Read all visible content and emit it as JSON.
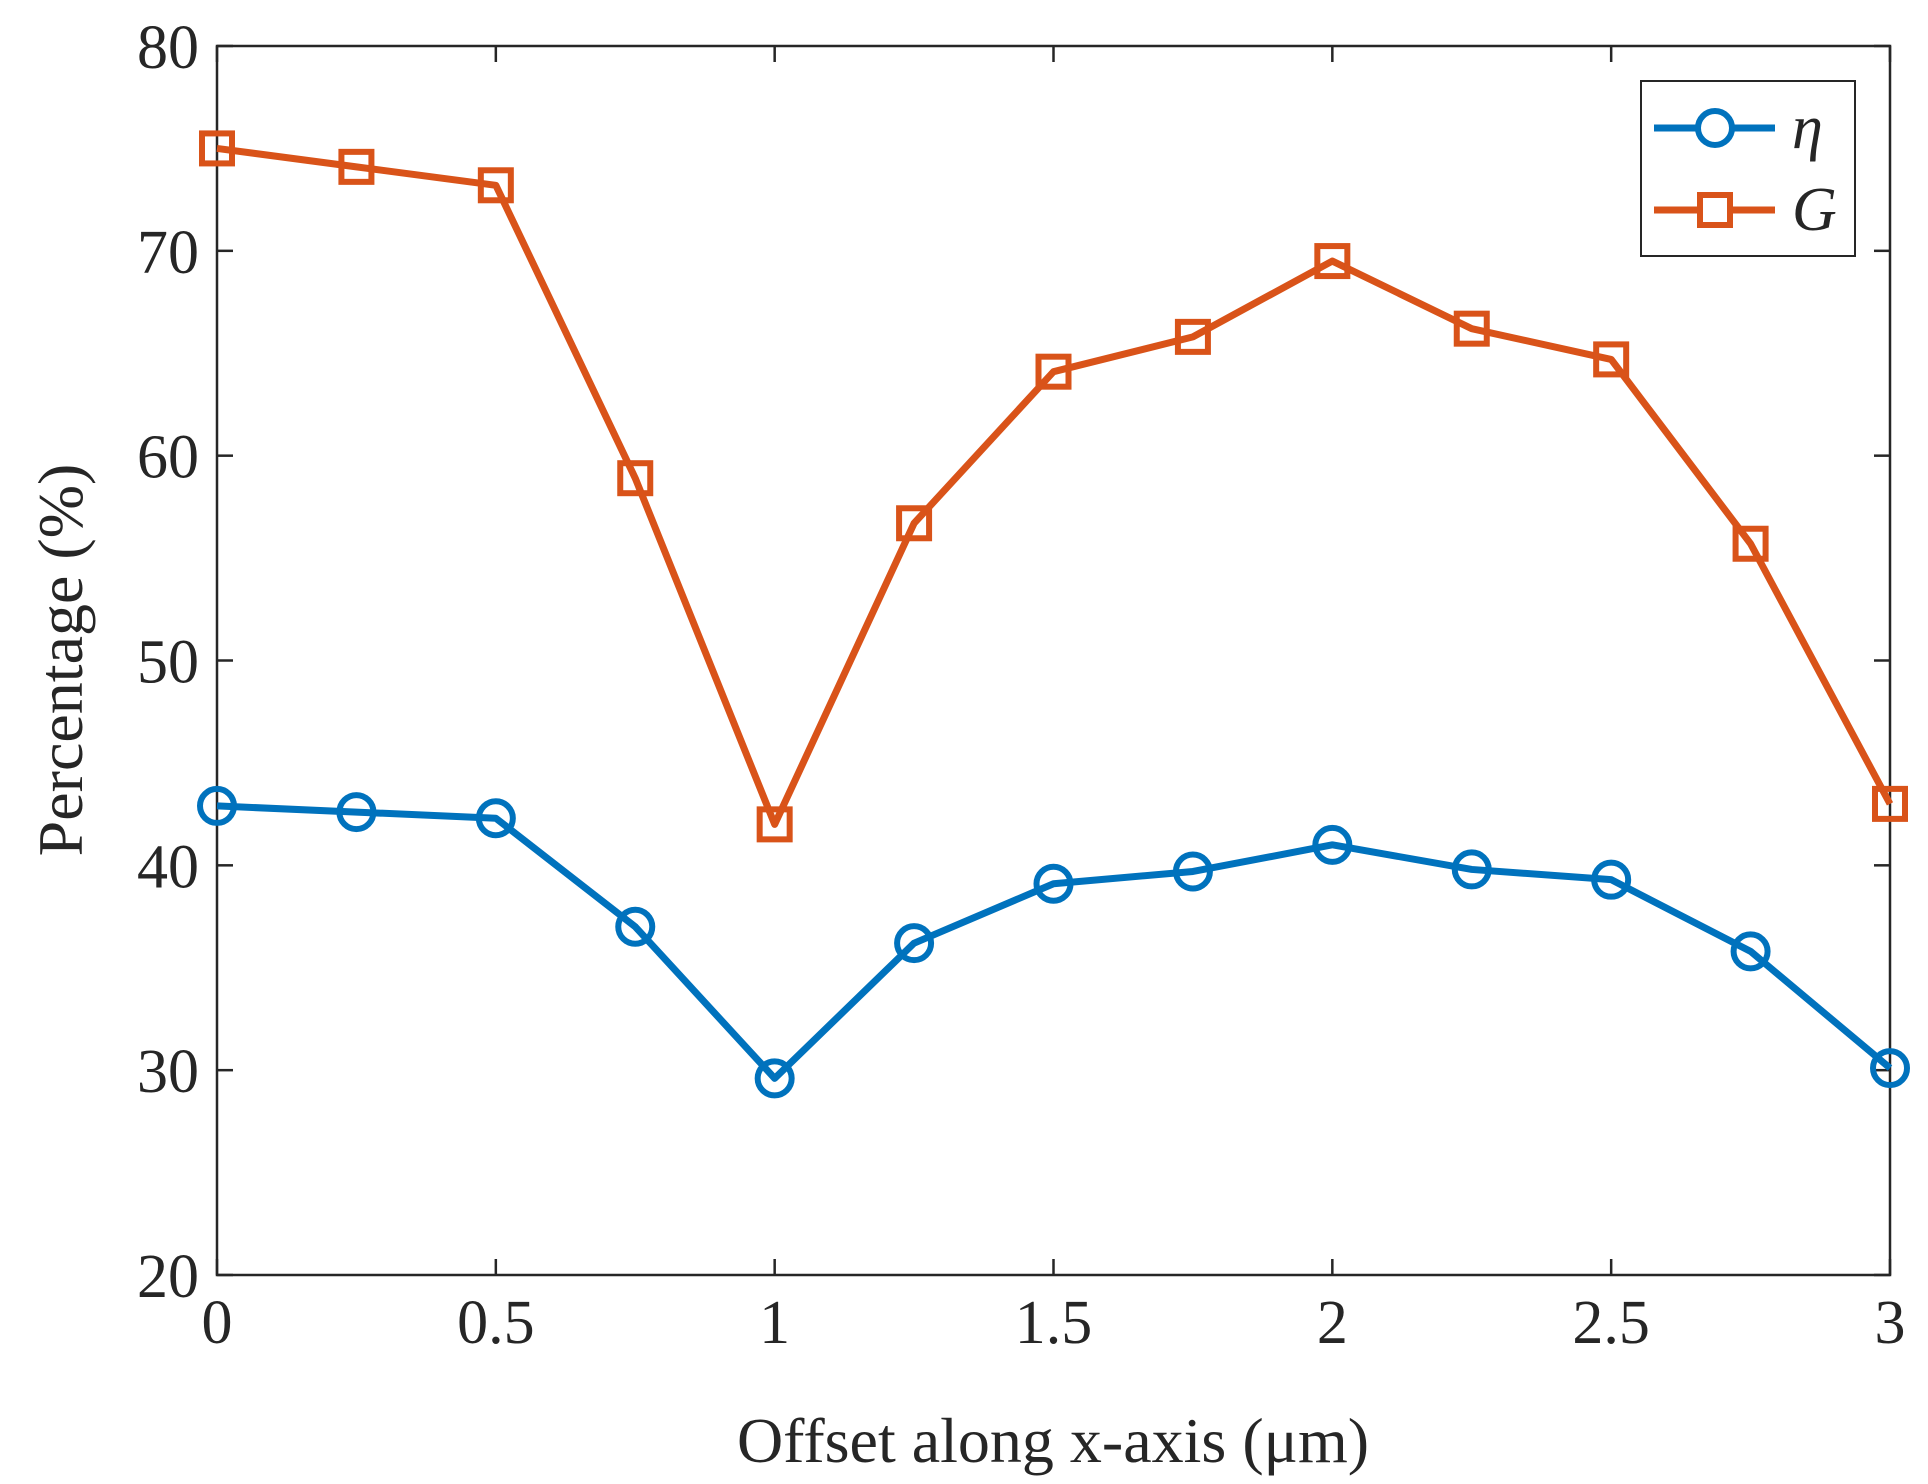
{
  "chart_data": {
    "type": "line",
    "title": "",
    "xlabel": "Offset along x-axis (μm)",
    "ylabel": "Percentage (%)",
    "xlim": [
      0,
      3
    ],
    "ylim": [
      20,
      80
    ],
    "xticks": [
      0,
      0.5,
      1,
      1.5,
      2,
      2.5,
      3
    ],
    "xtick_labels": [
      "0",
      "0.5",
      "1",
      "1.5",
      "2",
      "2.5",
      "3"
    ],
    "yticks": [
      20,
      30,
      40,
      50,
      60,
      70,
      80
    ],
    "ytick_labels": [
      "20",
      "30",
      "40",
      "50",
      "60",
      "70",
      "80"
    ],
    "grid": false,
    "legend_position": "top-right",
    "x": [
      0,
      0.25,
      0.5,
      0.75,
      1,
      1.25,
      1.5,
      1.75,
      2,
      2.25,
      2.5,
      2.75,
      3
    ],
    "series": [
      {
        "name": "η",
        "color": "#0072BD",
        "marker": "circle",
        "values": [
          42.9,
          42.6,
          42.3,
          37.0,
          29.6,
          36.2,
          39.1,
          39.7,
          41.0,
          39.8,
          39.3,
          35.8,
          30.1
        ]
      },
      {
        "name": "G",
        "color": "#D95319",
        "marker": "square",
        "values": [
          75.0,
          74.1,
          73.2,
          58.9,
          42.0,
          56.7,
          64.1,
          65.8,
          69.5,
          66.2,
          64.7,
          55.7,
          43.0
        ]
      }
    ]
  }
}
